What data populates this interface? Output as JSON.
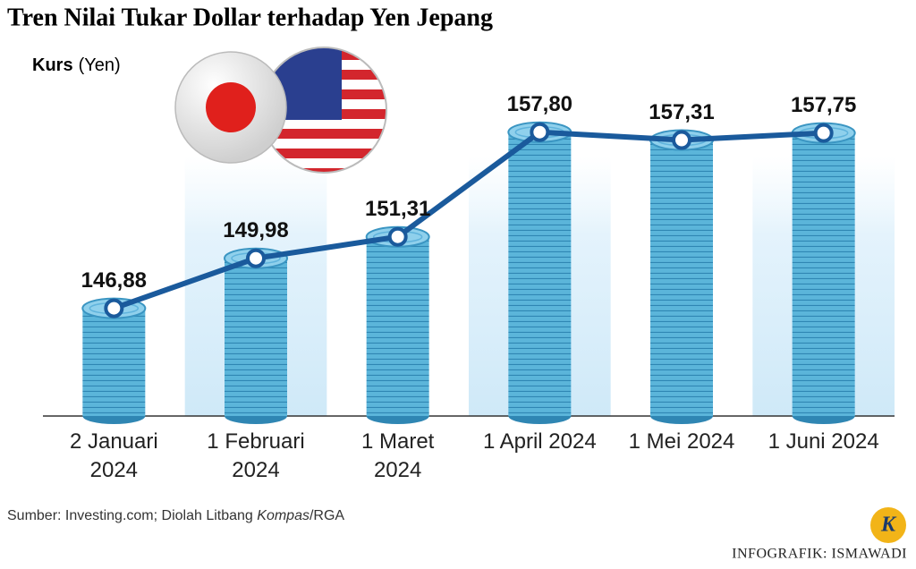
{
  "chart_data": {
    "type": "bar",
    "title": "Tren Nilai Tukar Dollar terhadap Yen Jepang",
    "y_label": "Kurs",
    "y_unit": "(Yen)",
    "categories": [
      "2 Januari 2024",
      "1 Februari 2024",
      "1 Maret 2024",
      "1 April 2024",
      "1 Mei 2024",
      "1 Juni 2024"
    ],
    "values": [
      146.88,
      149.98,
      151.31,
      157.8,
      157.31,
      157.75
    ],
    "value_labels": [
      "146,88",
      "149,98",
      "151,31",
      "157,80",
      "157,31",
      "157,75"
    ],
    "color": "#4aa8d0",
    "line_color": "#1a5a9c",
    "ylim": [
      140.2,
      162
    ],
    "source": [
      "Sumber: Investing.com; Diolah Litbang ",
      "Kompas",
      "/RGA"
    ],
    "credit": "INFOGRAFIK: ISMAWADI",
    "logo": "K"
  }
}
